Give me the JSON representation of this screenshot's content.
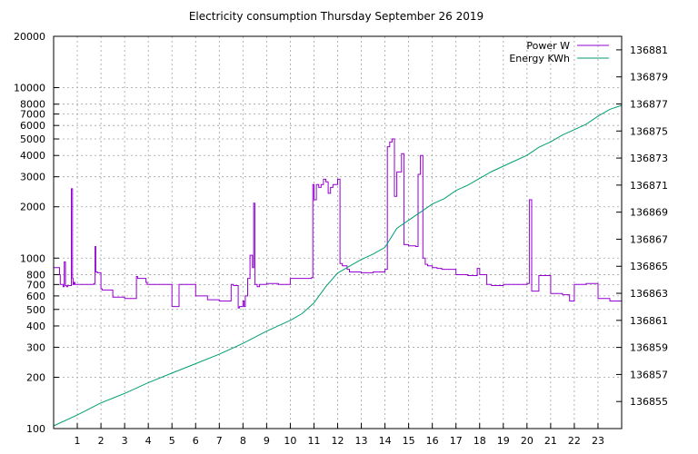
{
  "chart_data": {
    "type": "line",
    "title": "Electricity consumption Thursday September 26 2019",
    "xlabel": "",
    "ylabel": "",
    "xlim": [
      0,
      24
    ],
    "x_ticks": [
      1,
      2,
      3,
      4,
      5,
      6,
      7,
      8,
      9,
      10,
      11,
      12,
      13,
      14,
      15,
      16,
      17,
      18,
      19,
      20,
      21,
      22,
      23
    ],
    "y_scale": "log",
    "ylim": [
      100,
      20000
    ],
    "y_ticks": [
      100,
      200,
      300,
      400,
      500,
      600,
      700,
      800,
      1000,
      2000,
      3000,
      4000,
      5000,
      6000,
      7000,
      8000,
      10000,
      20000
    ],
    "y2_scale": "linear",
    "y2lim": [
      136853,
      136882
    ],
    "y2_ticks": [
      136855,
      136857,
      136859,
      136861,
      136863,
      136865,
      136867,
      136869,
      136871,
      136873,
      136875,
      136877,
      136879,
      136881
    ],
    "grid": true,
    "legend_position": "top-right",
    "series": [
      {
        "name": "Power W",
        "axis": "y",
        "color": "#9400d3",
        "x": [
          0,
          0.25,
          0.28,
          0.4,
          0.45,
          0.5,
          0.55,
          0.6,
          0.75,
          0.8,
          0.82,
          0.86,
          0.9,
          1.7,
          1.75,
          1.78,
          1.85,
          2.0,
          2.05,
          2.5,
          3.0,
          3.5,
          3.55,
          3.9,
          3.95,
          5.0,
          5.05,
          5.3,
          5.4,
          6.0,
          6.5,
          7.0,
          7.5,
          7.6,
          7.8,
          7.85,
          8.0,
          8.05,
          8.1,
          8.2,
          8.3,
          8.4,
          8.45,
          8.5,
          8.6,
          8.7,
          9.0,
          9.5,
          10.0,
          10.9,
          10.95,
          11.0,
          11.1,
          11.2,
          11.3,
          11.4,
          11.5,
          11.6,
          11.7,
          11.8,
          11.9,
          12.0,
          12.1,
          12.2,
          12.4,
          12.5,
          13.0,
          13.5,
          14.0,
          14.1,
          14.2,
          14.3,
          14.4,
          14.5,
          14.7,
          14.8,
          15.0,
          15.3,
          15.4,
          15.5,
          15.6,
          15.7,
          15.8,
          16.0,
          16.2,
          16.4,
          16.5,
          17.0,
          17.5,
          17.9,
          18.0,
          18.3,
          18.5,
          19.0,
          19.5,
          20.0,
          20.1,
          20.2,
          20.5,
          21.0,
          21.5,
          21.8,
          22.0,
          22.5,
          23.0,
          23.5,
          24.0
        ],
        "values": [
          880,
          800,
          700,
          680,
          950,
          690,
          680,
          690,
          2550,
          760,
          700,
          720,
          700,
          710,
          1170,
          830,
          820,
          660,
          650,
          590,
          580,
          780,
          760,
          720,
          700,
          520,
          520,
          700,
          700,
          600,
          570,
          560,
          700,
          690,
          510,
          520,
          560,
          520,
          600,
          760,
          1040,
          880,
          2100,
          700,
          680,
          700,
          710,
          700,
          760,
          770,
          2700,
          2200,
          2700,
          2600,
          2700,
          2900,
          2800,
          2400,
          2600,
          2700,
          2700,
          2900,
          930,
          900,
          860,
          830,
          820,
          830,
          860,
          4500,
          4800,
          5000,
          2300,
          3200,
          4100,
          1200,
          1180,
          1170,
          3100,
          4000,
          1000,
          920,
          900,
          880,
          870,
          860,
          860,
          800,
          790,
          870,
          800,
          700,
          690,
          700,
          700,
          710,
          2200,
          640,
          790,
          620,
          610,
          560,
          700,
          710,
          580,
          560,
          570
        ]
      },
      {
        "name": "Energy KWh",
        "axis": "y2",
        "color": "#009e73",
        "x": [
          0,
          1,
          2,
          3,
          4,
          5,
          6,
          7,
          8,
          9,
          10,
          10.5,
          11,
          11.5,
          12,
          12.5,
          13,
          13.5,
          14,
          14.5,
          15,
          15.5,
          16,
          16.5,
          17,
          17.5,
          18,
          18.5,
          19,
          19.5,
          20,
          20.5,
          21,
          21.5,
          22,
          22.5,
          23,
          23.5,
          24
        ],
        "values": [
          136853.2,
          136854.0,
          136854.9,
          136855.6,
          136856.4,
          136857.1,
          136857.8,
          136858.5,
          136859.3,
          136860.2,
          136861.0,
          136861.5,
          136862.3,
          136863.5,
          136864.5,
          136865.0,
          136865.5,
          136865.9,
          136866.4,
          136867.8,
          136868.4,
          136869.0,
          136869.6,
          136870.0,
          136870.6,
          136871.0,
          136871.5,
          136872.0,
          136872.4,
          136872.8,
          136873.2,
          136873.8,
          136874.2,
          136874.7,
          136875.1,
          136875.5,
          136876.1,
          136876.6,
          136876.9
        ]
      }
    ]
  }
}
